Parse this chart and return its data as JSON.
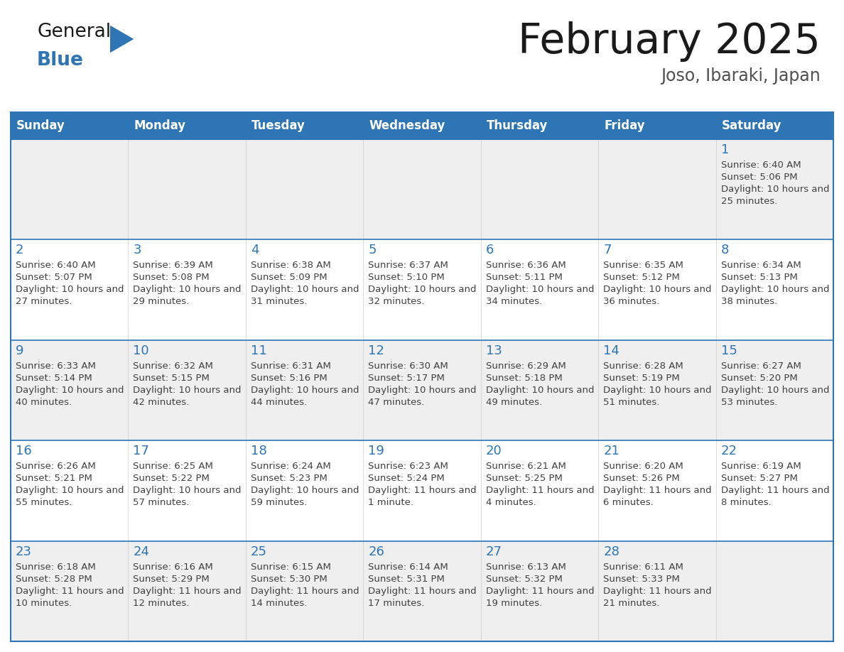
{
  "title": "February 2025",
  "subtitle": "Joso, Ibaraki, Japan",
  "days_of_week": [
    "Sunday",
    "Monday",
    "Tuesday",
    "Wednesday",
    "Thursday",
    "Friday",
    "Saturday"
  ],
  "header_bg": "#2E75B6",
  "header_text": "#FFFFFF",
  "cell_bg_odd": "#EFEFEF",
  "cell_bg_even": "#FFFFFF",
  "border_color": "#2E75B6",
  "day_num_color": "#2E75B6",
  "info_text_color": "#404040",
  "title_color": "#1a1a1a",
  "subtitle_color": "#505050",
  "logo_general_color": "#1a1a1a",
  "logo_blue_color": "#2E75B6",
  "logo_triangle_color": "#2E75B6",
  "calendar": [
    [
      null,
      null,
      null,
      null,
      null,
      null,
      1
    ],
    [
      2,
      3,
      4,
      5,
      6,
      7,
      8
    ],
    [
      9,
      10,
      11,
      12,
      13,
      14,
      15
    ],
    [
      16,
      17,
      18,
      19,
      20,
      21,
      22
    ],
    [
      23,
      24,
      25,
      26,
      27,
      28,
      null
    ]
  ],
  "sun_rise_set": {
    "1": {
      "rise": "6:40 AM",
      "set": "5:06 PM",
      "daylight": "10 hours and 25 minutes."
    },
    "2": {
      "rise": "6:40 AM",
      "set": "5:07 PM",
      "daylight": "10 hours and 27 minutes."
    },
    "3": {
      "rise": "6:39 AM",
      "set": "5:08 PM",
      "daylight": "10 hours and 29 minutes."
    },
    "4": {
      "rise": "6:38 AM",
      "set": "5:09 PM",
      "daylight": "10 hours and 31 minutes."
    },
    "5": {
      "rise": "6:37 AM",
      "set": "5:10 PM",
      "daylight": "10 hours and 32 minutes."
    },
    "6": {
      "rise": "6:36 AM",
      "set": "5:11 PM",
      "daylight": "10 hours and 34 minutes."
    },
    "7": {
      "rise": "6:35 AM",
      "set": "5:12 PM",
      "daylight": "10 hours and 36 minutes."
    },
    "8": {
      "rise": "6:34 AM",
      "set": "5:13 PM",
      "daylight": "10 hours and 38 minutes."
    },
    "9": {
      "rise": "6:33 AM",
      "set": "5:14 PM",
      "daylight": "10 hours and 40 minutes."
    },
    "10": {
      "rise": "6:32 AM",
      "set": "5:15 PM",
      "daylight": "10 hours and 42 minutes."
    },
    "11": {
      "rise": "6:31 AM",
      "set": "5:16 PM",
      "daylight": "10 hours and 44 minutes."
    },
    "12": {
      "rise": "6:30 AM",
      "set": "5:17 PM",
      "daylight": "10 hours and 47 minutes."
    },
    "13": {
      "rise": "6:29 AM",
      "set": "5:18 PM",
      "daylight": "10 hours and 49 minutes."
    },
    "14": {
      "rise": "6:28 AM",
      "set": "5:19 PM",
      "daylight": "10 hours and 51 minutes."
    },
    "15": {
      "rise": "6:27 AM",
      "set": "5:20 PM",
      "daylight": "10 hours and 53 minutes."
    },
    "16": {
      "rise": "6:26 AM",
      "set": "5:21 PM",
      "daylight": "10 hours and 55 minutes."
    },
    "17": {
      "rise": "6:25 AM",
      "set": "5:22 PM",
      "daylight": "10 hours and 57 minutes."
    },
    "18": {
      "rise": "6:24 AM",
      "set": "5:23 PM",
      "daylight": "10 hours and 59 minutes."
    },
    "19": {
      "rise": "6:23 AM",
      "set": "5:24 PM",
      "daylight": "11 hours and 1 minute."
    },
    "20": {
      "rise": "6:21 AM",
      "set": "5:25 PM",
      "daylight": "11 hours and 4 minutes."
    },
    "21": {
      "rise": "6:20 AM",
      "set": "5:26 PM",
      "daylight": "11 hours and 6 minutes."
    },
    "22": {
      "rise": "6:19 AM",
      "set": "5:27 PM",
      "daylight": "11 hours and 8 minutes."
    },
    "23": {
      "rise": "6:18 AM",
      "set": "5:28 PM",
      "daylight": "11 hours and 10 minutes."
    },
    "24": {
      "rise": "6:16 AM",
      "set": "5:29 PM",
      "daylight": "11 hours and 12 minutes."
    },
    "25": {
      "rise": "6:15 AM",
      "set": "5:30 PM",
      "daylight": "11 hours and 14 minutes."
    },
    "26": {
      "rise": "6:14 AM",
      "set": "5:31 PM",
      "daylight": "11 hours and 17 minutes."
    },
    "27": {
      "rise": "6:13 AM",
      "set": "5:32 PM",
      "daylight": "11 hours and 19 minutes."
    },
    "28": {
      "rise": "6:11 AM",
      "set": "5:33 PM",
      "daylight": "11 hours and 21 minutes."
    }
  }
}
